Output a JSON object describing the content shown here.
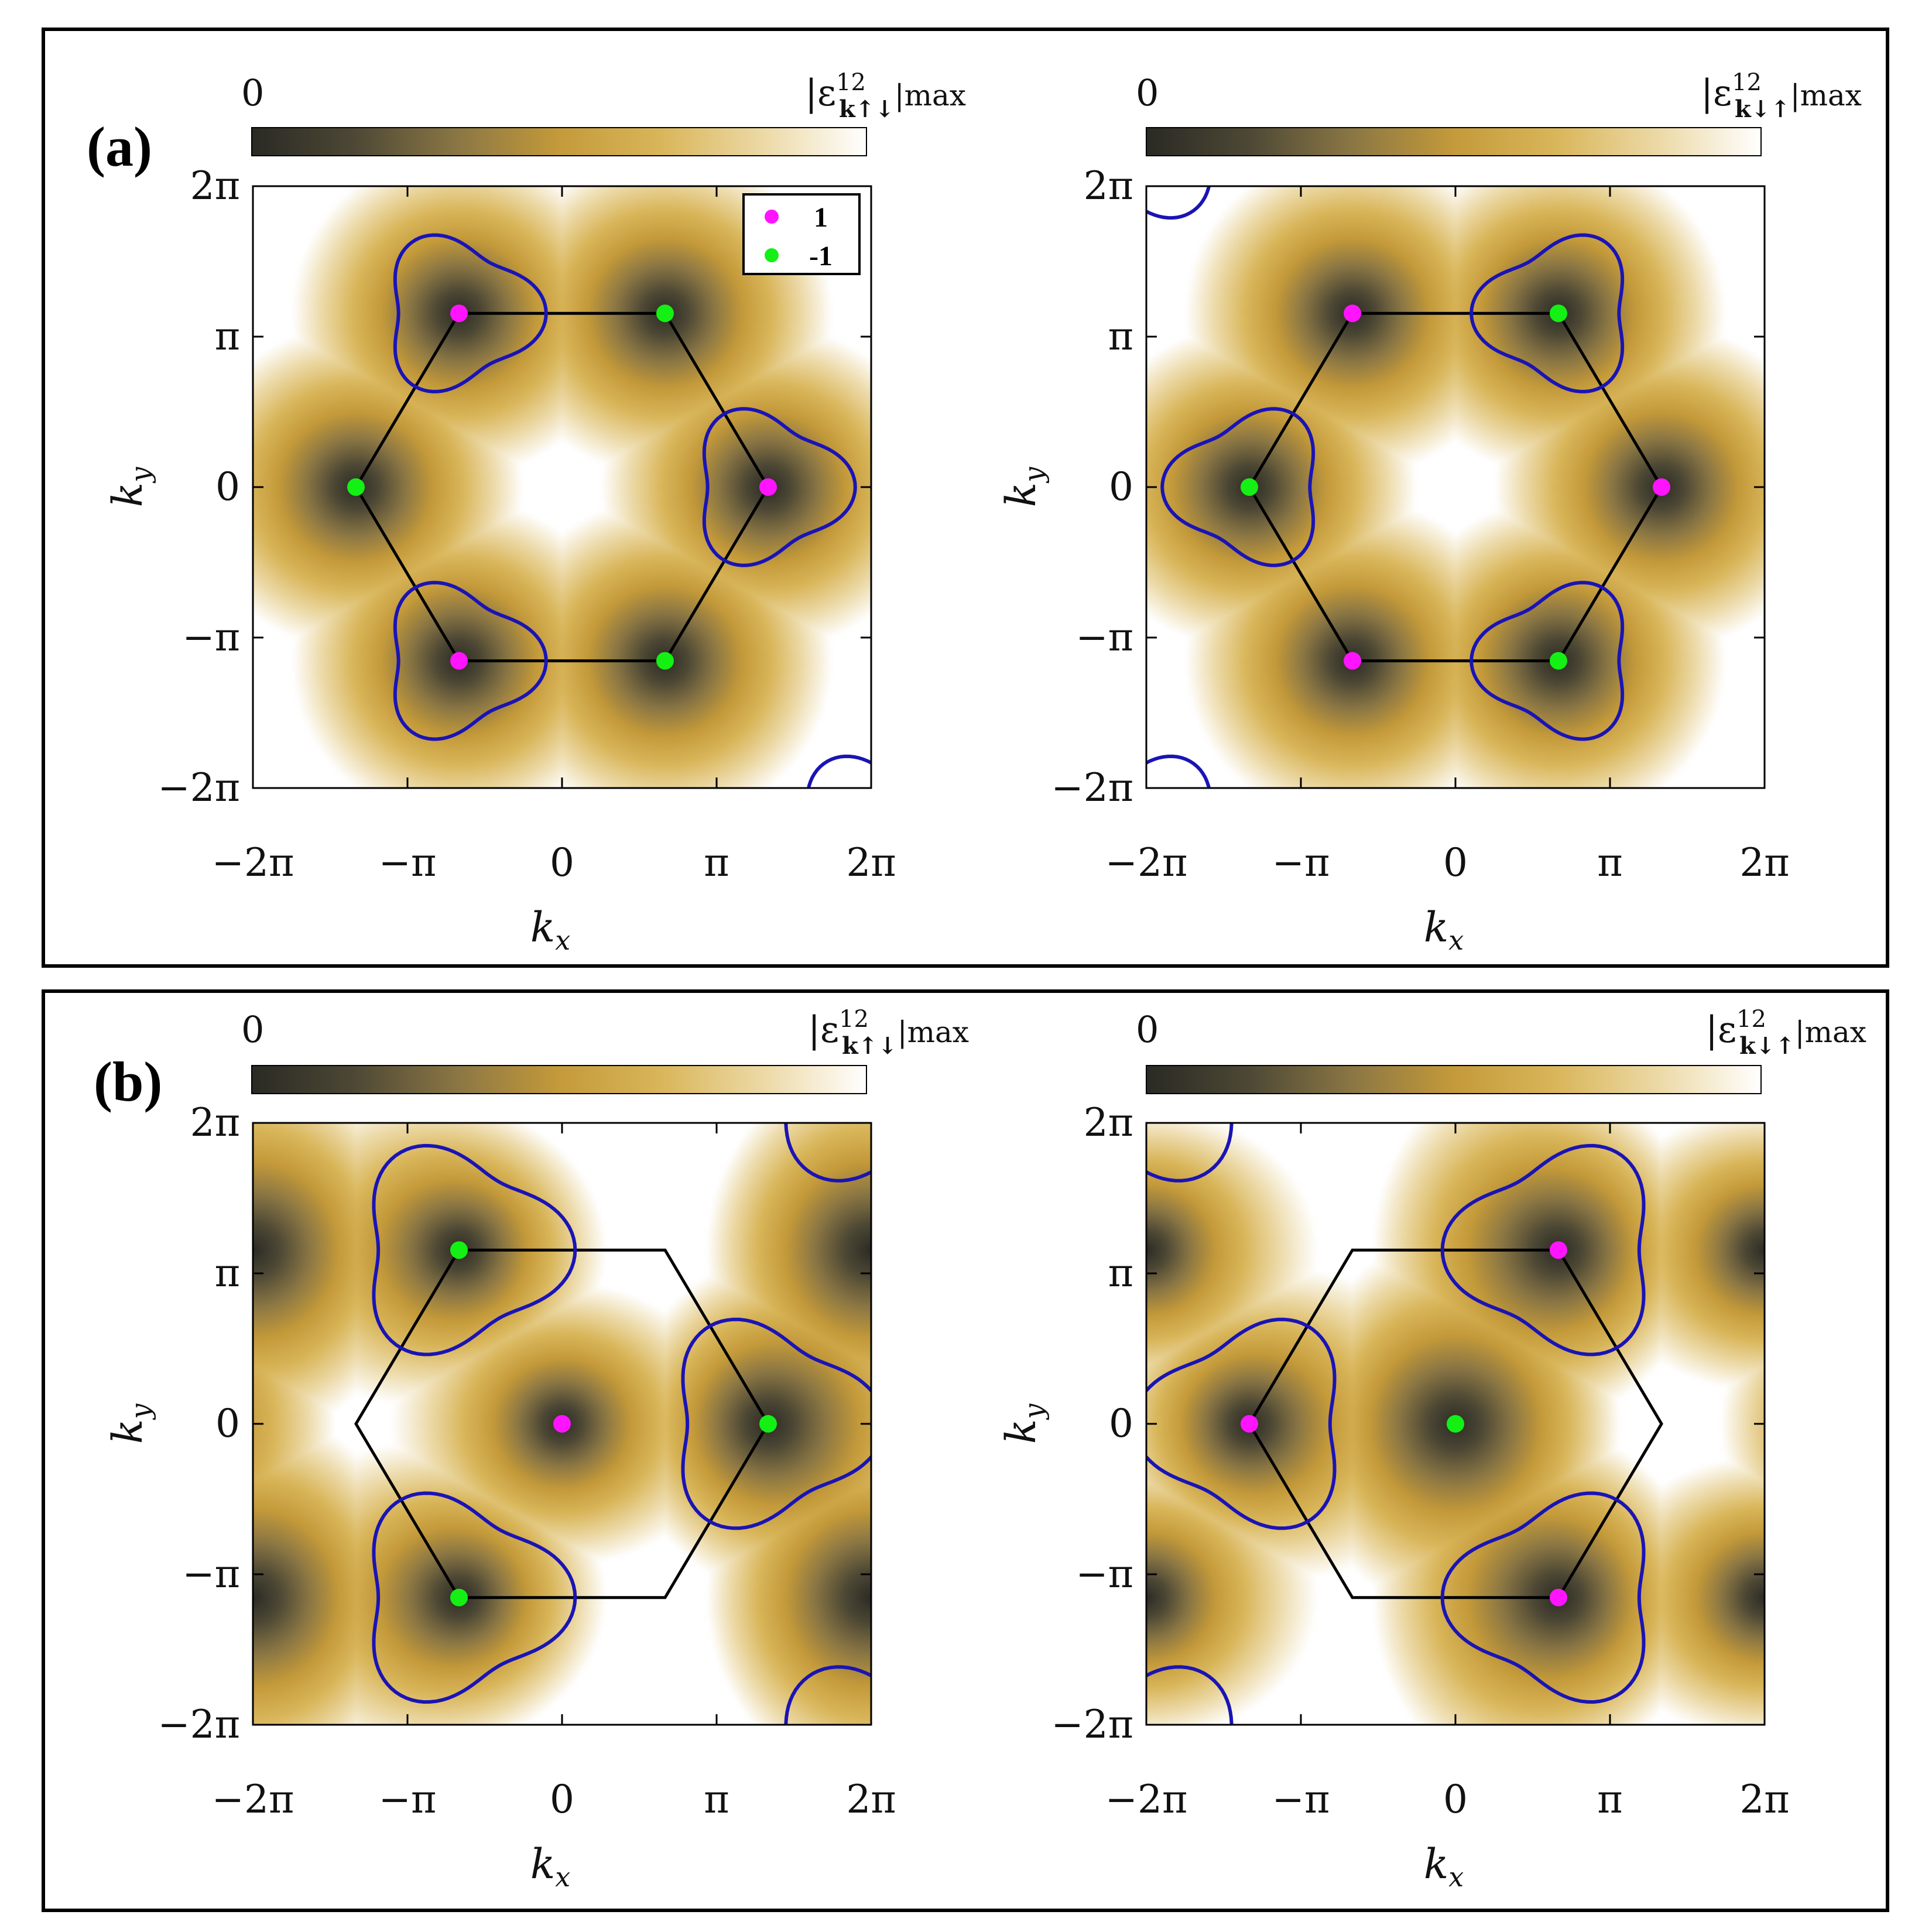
{
  "figure": {
    "colors": {
      "colormap": [
        "#2a2a24",
        "#4d4835",
        "#8a7644",
        "#c49a3a",
        "#d9b65a",
        "#ecd9a6",
        "#ffffff"
      ],
      "contour": "#1a14b4",
      "hexagon": "#000000",
      "chern_pos": "#ff14ff",
      "chern_neg": "#14f014"
    },
    "panels": [
      {
        "label": "(a)"
      },
      {
        "label": "(b)"
      }
    ],
    "legend": {
      "entries": [
        {
          "label": "1",
          "color": "#ff14ff"
        },
        {
          "label": "-1",
          "color": "#14f014"
        }
      ]
    }
  },
  "chart_data": [
    {
      "type": "heatmap",
      "panel": "(a)",
      "colorbar": {
        "min_label": "0",
        "max_label_main": "|ε",
        "max_label_sup": "12",
        "max_label_sub": "k↑↓",
        "max_label_tail": "|max"
      },
      "xlabel": "k",
      "xlabel_sub": "x",
      "ylabel": "k",
      "ylabel_sub": "y",
      "xlim": [
        -6.2832,
        6.2832
      ],
      "ylim": [
        -6.2832,
        6.2832
      ],
      "xticks": [
        "−2π",
        "−π",
        "0",
        "π",
        "2π"
      ],
      "yticks": [
        "2π",
        "π",
        "0",
        "−π",
        "−2π"
      ],
      "field": {
        "cone_centers": [
          [
            -2.094,
            3.628
          ],
          [
            2.094,
            3.628
          ],
          [
            -4.189,
            0
          ],
          [
            4.189,
            0
          ],
          [
            -2.094,
            -3.628
          ],
          [
            2.094,
            -3.628
          ]
        ],
        "modulation": 0.0
      },
      "hexagon": [
        [
          -2.094,
          3.628
        ],
        [
          2.094,
          3.628
        ],
        [
          4.189,
          0
        ],
        [
          2.094,
          -3.628
        ],
        [
          -2.094,
          -3.628
        ],
        [
          -4.189,
          0
        ]
      ],
      "points": [
        {
          "x": -2.094,
          "y": 3.628,
          "chern": 1
        },
        {
          "x": 2.094,
          "y": 3.628,
          "chern": -1
        },
        {
          "x": -4.189,
          "y": 0,
          "chern": -1
        },
        {
          "x": 4.189,
          "y": 0,
          "chern": 1
        },
        {
          "x": -2.094,
          "y": -3.628,
          "chern": 1
        },
        {
          "x": 2.094,
          "y": -3.628,
          "chern": -1
        }
      ],
      "contours": [
        {
          "cx": -2.094,
          "cy": 3.628,
          "orient": 1,
          "r": 1.5
        },
        {
          "cx": 4.189,
          "cy": 0,
          "orient": 1,
          "r": 1.5
        },
        {
          "cx": -2.094,
          "cy": -3.628,
          "orient": 1,
          "r": 1.5
        },
        {
          "cx": 6.283,
          "cy": -7.256,
          "orient": 1,
          "r": 1.5
        }
      ],
      "legend_shown": true
    },
    {
      "type": "heatmap",
      "panel": "(a)",
      "colorbar": {
        "min_label": "0",
        "max_label_main": "|ε",
        "max_label_sup": "12",
        "max_label_sub": "k↓↑",
        "max_label_tail": "|max"
      },
      "xlabel": "k",
      "xlabel_sub": "x",
      "ylabel": "k",
      "ylabel_sub": "y",
      "xlim": [
        -6.2832,
        6.2832
      ],
      "ylim": [
        -6.2832,
        6.2832
      ],
      "xticks": [
        "−2π",
        "−π",
        "0",
        "π",
        "2π"
      ],
      "yticks": [
        "2π",
        "π",
        "0",
        "−π",
        "−2π"
      ],
      "field": {
        "cone_centers": [
          [
            -2.094,
            3.628
          ],
          [
            2.094,
            3.628
          ],
          [
            -4.189,
            0
          ],
          [
            4.189,
            0
          ],
          [
            -2.094,
            -3.628
          ],
          [
            2.094,
            -3.628
          ]
        ],
        "modulation": 0.0
      },
      "hexagon": [
        [
          -2.094,
          3.628
        ],
        [
          2.094,
          3.628
        ],
        [
          4.189,
          0
        ],
        [
          2.094,
          -3.628
        ],
        [
          -2.094,
          -3.628
        ],
        [
          -4.189,
          0
        ]
      ],
      "points": [
        {
          "x": -2.094,
          "y": 3.628,
          "chern": 1
        },
        {
          "x": 2.094,
          "y": 3.628,
          "chern": -1
        },
        {
          "x": -4.189,
          "y": 0,
          "chern": -1
        },
        {
          "x": 4.189,
          "y": 0,
          "chern": 1
        },
        {
          "x": -2.094,
          "y": -3.628,
          "chern": 1
        },
        {
          "x": 2.094,
          "y": -3.628,
          "chern": -1
        }
      ],
      "contours": [
        {
          "cx": 2.094,
          "cy": 3.628,
          "orient": -1,
          "r": 1.5
        },
        {
          "cx": -4.189,
          "cy": 0,
          "orient": -1,
          "r": 1.5
        },
        {
          "cx": 2.094,
          "cy": -3.628,
          "orient": -1,
          "r": 1.5
        },
        {
          "cx": -6.283,
          "cy": 7.256,
          "orient": -1,
          "r": 1.5
        },
        {
          "cx": -6.283,
          "cy": -7.256,
          "orient": -1,
          "r": 1.5
        }
      ],
      "legend_shown": false
    },
    {
      "type": "heatmap",
      "panel": "(b)",
      "colorbar": {
        "min_label": "0",
        "max_label_main": "|ε",
        "max_label_sup": "12",
        "max_label_sub": "k↑↓",
        "max_label_tail": "|max"
      },
      "xlabel": "k",
      "xlabel_sub": "x",
      "ylabel": "k",
      "ylabel_sub": "y",
      "xlim": [
        -6.2832,
        6.2832
      ],
      "ylim": [
        -6.2832,
        6.2832
      ],
      "xticks": [
        "−2π",
        "−π",
        "0",
        "π",
        "2π"
      ],
      "yticks": [
        "2π",
        "π",
        "0",
        "−π",
        "−2π"
      ],
      "field": {
        "cone_centers": [
          [
            0,
            0
          ],
          [
            -2.094,
            3.628
          ],
          [
            -2.094,
            -3.628
          ],
          [
            4.189,
            0
          ],
          [
            -6.283,
            3.628
          ],
          [
            -6.283,
            -3.628
          ],
          [
            6.283,
            3.628
          ],
          [
            6.283,
            -3.628
          ]
        ],
        "modulation": 1.0
      },
      "hexagon": [
        [
          -2.094,
          3.628
        ],
        [
          2.094,
          3.628
        ],
        [
          4.189,
          0
        ],
        [
          2.094,
          -3.628
        ],
        [
          -2.094,
          -3.628
        ],
        [
          -4.189,
          0
        ]
      ],
      "points": [
        {
          "x": -2.094,
          "y": 3.628,
          "chern": -1
        },
        {
          "x": 0,
          "y": 0,
          "chern": 1
        },
        {
          "x": 4.189,
          "y": 0,
          "chern": -1
        },
        {
          "x": -2.094,
          "y": -3.628,
          "chern": -1
        }
      ],
      "contours": [
        {
          "cx": -2.094,
          "cy": 3.628,
          "orient": 1,
          "r": 2.0
        },
        {
          "cx": 4.189,
          "cy": 0,
          "orient": 1,
          "r": 2.0
        },
        {
          "cx": -2.094,
          "cy": -3.628,
          "orient": 1,
          "r": 2.0
        },
        {
          "cx": 6.283,
          "cy": 7.256,
          "orient": 1,
          "r": 2.0
        },
        {
          "cx": 6.283,
          "cy": -7.256,
          "orient": 1,
          "r": 2.0
        }
      ],
      "legend_shown": false
    },
    {
      "type": "heatmap",
      "panel": "(b)",
      "colorbar": {
        "min_label": "0",
        "max_label_main": "|ε",
        "max_label_sup": "12",
        "max_label_sub": "k↓↑",
        "max_label_tail": "|max"
      },
      "xlabel": "k",
      "xlabel_sub": "x",
      "ylabel": "k",
      "ylabel_sub": "y",
      "xlim": [
        -6.2832,
        6.2832
      ],
      "ylim": [
        -6.2832,
        6.2832
      ],
      "xticks": [
        "−2π",
        "−π",
        "0",
        "π",
        "2π"
      ],
      "yticks": [
        "2π",
        "π",
        "0",
        "−π",
        "−2π"
      ],
      "field": {
        "cone_centers": [
          [
            0,
            0
          ],
          [
            2.094,
            3.628
          ],
          [
            2.094,
            -3.628
          ],
          [
            -4.189,
            0
          ],
          [
            -6.283,
            3.628
          ],
          [
            -6.283,
            -3.628
          ],
          [
            6.283,
            3.628
          ],
          [
            6.283,
            -3.628
          ]
        ],
        "modulation": -1.0
      },
      "hexagon": [
        [
          -2.094,
          3.628
        ],
        [
          2.094,
          3.628
        ],
        [
          4.189,
          0
        ],
        [
          2.094,
          -3.628
        ],
        [
          -2.094,
          -3.628
        ],
        [
          -4.189,
          0
        ]
      ],
      "points": [
        {
          "x": 2.094,
          "y": 3.628,
          "chern": 1
        },
        {
          "x": -4.189,
          "y": 0,
          "chern": 1
        },
        {
          "x": 0,
          "y": 0,
          "chern": -1
        },
        {
          "x": 2.094,
          "y": -3.628,
          "chern": 1
        }
      ],
      "contours": [
        {
          "cx": 2.094,
          "cy": 3.628,
          "orient": -1,
          "r": 2.0
        },
        {
          "cx": -4.189,
          "cy": 0,
          "orient": -1,
          "r": 2.0
        },
        {
          "cx": 2.094,
          "cy": -3.628,
          "orient": -1,
          "r": 2.0
        },
        {
          "cx": -6.283,
          "cy": 7.256,
          "orient": -1,
          "r": 2.0
        },
        {
          "cx": -6.283,
          "cy": -7.256,
          "orient": -1,
          "r": 2.0
        }
      ],
      "legend_shown": false
    }
  ]
}
